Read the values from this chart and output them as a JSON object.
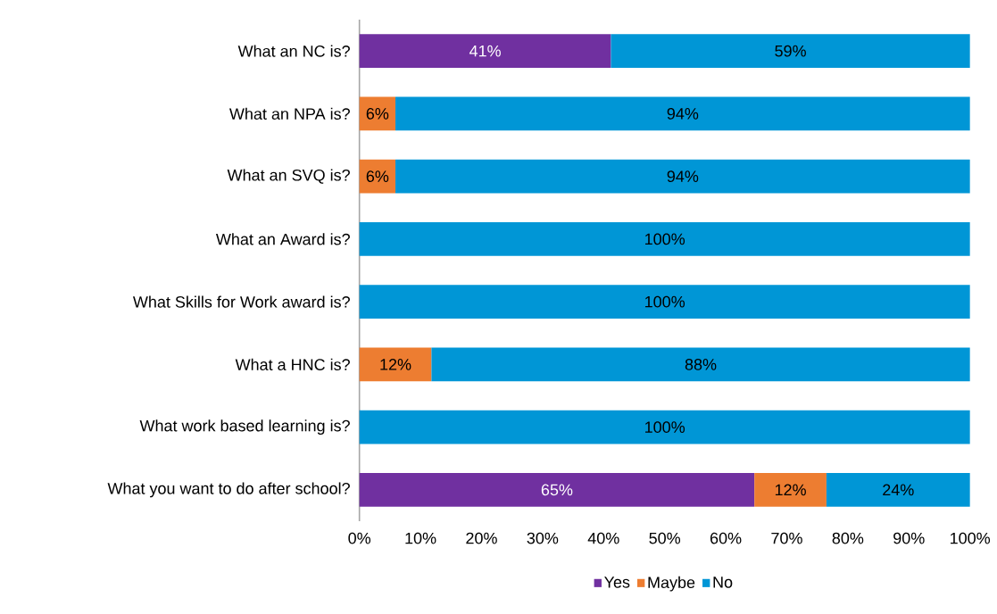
{
  "chart_data": {
    "type": "bar",
    "orientation": "horizontal",
    "stacked": true,
    "categories": [
      "What an NC is?",
      "What an NPA is?",
      "What an SVQ is?",
      "What an Award is?",
      "What Skills for Work award is?",
      "What a HNC is?",
      "What work based learning is?",
      "What you want to do after school?"
    ],
    "series": [
      {
        "name": "Yes",
        "color": "#7030a0",
        "values": [
          41.2,
          null,
          null,
          null,
          null,
          null,
          null,
          64.7
        ],
        "value_labels": [
          "41%",
          null,
          null,
          null,
          null,
          null,
          null,
          "65%"
        ]
      },
      {
        "name": "Maybe",
        "color": "#ed7d31",
        "values": [
          null,
          5.9,
          5.9,
          null,
          null,
          11.8,
          null,
          11.8
        ],
        "value_labels": [
          null,
          "6%",
          "6%",
          null,
          null,
          "12%",
          null,
          "12%"
        ]
      },
      {
        "name": "No",
        "color": "#0096d6",
        "values": [
          58.8,
          94.1,
          94.1,
          100,
          100,
          88.2,
          100,
          23.5
        ],
        "value_labels": [
          "59%",
          "94%",
          "94%",
          "100%",
          "100%",
          "88%",
          "100%",
          "24%"
        ]
      }
    ],
    "xlim": [
      0,
      100
    ],
    "xticks": [
      {
        "value": 0,
        "label": "0%"
      },
      {
        "value": 10,
        "label": "10%"
      },
      {
        "value": 20,
        "label": "20%"
      },
      {
        "value": 30,
        "label": "30%"
      },
      {
        "value": 40,
        "label": "40%"
      },
      {
        "value": 50,
        "label": "50%"
      },
      {
        "value": 60,
        "label": "60%"
      },
      {
        "value": 70,
        "label": "70%"
      },
      {
        "value": 80,
        "label": "80%"
      },
      {
        "value": 90,
        "label": "90%"
      },
      {
        "value": 100,
        "label": "100%"
      }
    ],
    "grid": false,
    "legend": "bottom"
  }
}
